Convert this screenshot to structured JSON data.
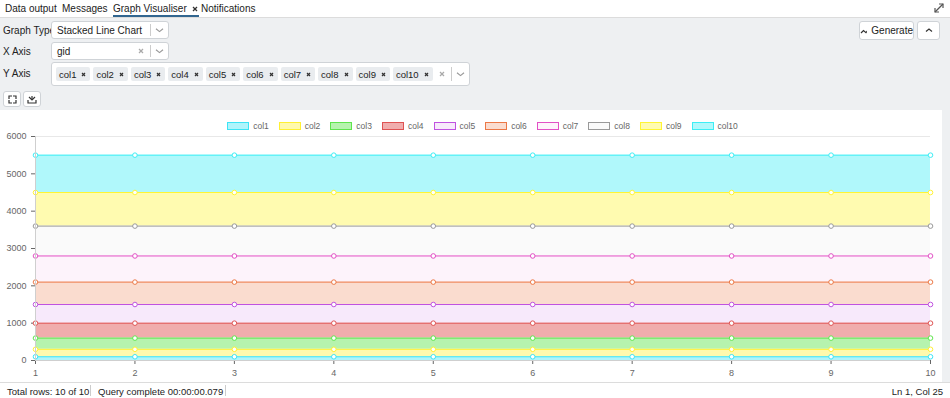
{
  "tabs": [
    "Data output",
    "Messages",
    "Graph Visualiser",
    "Notifications"
  ],
  "active_tab": "Graph Visualiser",
  "form": {
    "graph_type": {
      "label": "Graph Type",
      "value": "Stacked Line Chart"
    },
    "x_axis": {
      "label": "X Axis",
      "value": "gid"
    },
    "y_axis": {
      "label": "Y Axis",
      "values": [
        "col1",
        "col2",
        "col3",
        "col4",
        "col5",
        "col6",
        "col7",
        "col8",
        "col9",
        "col10"
      ]
    },
    "button": "Generate"
  },
  "status_bar": {
    "left": [
      "Total rows: 10 of 10",
      "Query complete 00:00:00.079"
    ],
    "right": "Ln 1, Col 25"
  },
  "chart_data": {
    "type": "area",
    "stacked": true,
    "marker": "circle",
    "grid": true,
    "legend": "top",
    "x": [
      1,
      2,
      3,
      4,
      5,
      6,
      7,
      8,
      9,
      10
    ],
    "xlim": [
      1,
      10
    ],
    "xticks": [
      1,
      2,
      3,
      4,
      5,
      6,
      7,
      8,
      9,
      10
    ],
    "ylim": [
      0,
      6000
    ],
    "yticks": [
      0,
      1000,
      2000,
      3000,
      4000,
      5000,
      6000
    ],
    "series": [
      {
        "name": "col1",
        "color": "#b0f4fb",
        "values": [
          100,
          100,
          100,
          100,
          100,
          100,
          100,
          100,
          100,
          100
        ]
      },
      {
        "name": "col2",
        "color": "#fff9ad",
        "values": [
          200,
          200,
          200,
          200,
          200,
          200,
          200,
          200,
          200,
          200
        ]
      },
      {
        "name": "col3",
        "color": "#b6f3ae",
        "values": [
          300,
          300,
          300,
          300,
          300,
          300,
          300,
          300,
          300,
          300
        ]
      },
      {
        "name": "col4",
        "color": "#f0adad",
        "values": [
          400,
          400,
          400,
          400,
          400,
          400,
          400,
          400,
          400,
          400
        ]
      },
      {
        "name": "col5",
        "color": "#f7e9fb",
        "values": [
          500,
          500,
          500,
          500,
          500,
          500,
          500,
          500,
          500,
          500
        ]
      },
      {
        "name": "col6",
        "color": "#fadccf",
        "values": [
          600,
          600,
          600,
          600,
          600,
          600,
          600,
          600,
          600,
          600
        ]
      },
      {
        "name": "col7",
        "color": "#fdf3fb",
        "values": [
          700,
          700,
          700,
          700,
          700,
          700,
          700,
          700,
          700,
          700
        ]
      },
      {
        "name": "col8",
        "color": "#fafafa",
        "values": [
          800,
          800,
          800,
          800,
          800,
          800,
          800,
          800,
          800,
          800
        ]
      },
      {
        "name": "col9",
        "color": "#fffbb0",
        "values": [
          900,
          900,
          900,
          900,
          900,
          900,
          900,
          900,
          900,
          900
        ]
      },
      {
        "name": "col10",
        "color": "#b0f8fb",
        "values": [
          1000,
          1000,
          1000,
          1000,
          1000,
          1000,
          1000,
          1000,
          1000,
          1000
        ]
      }
    ]
  }
}
